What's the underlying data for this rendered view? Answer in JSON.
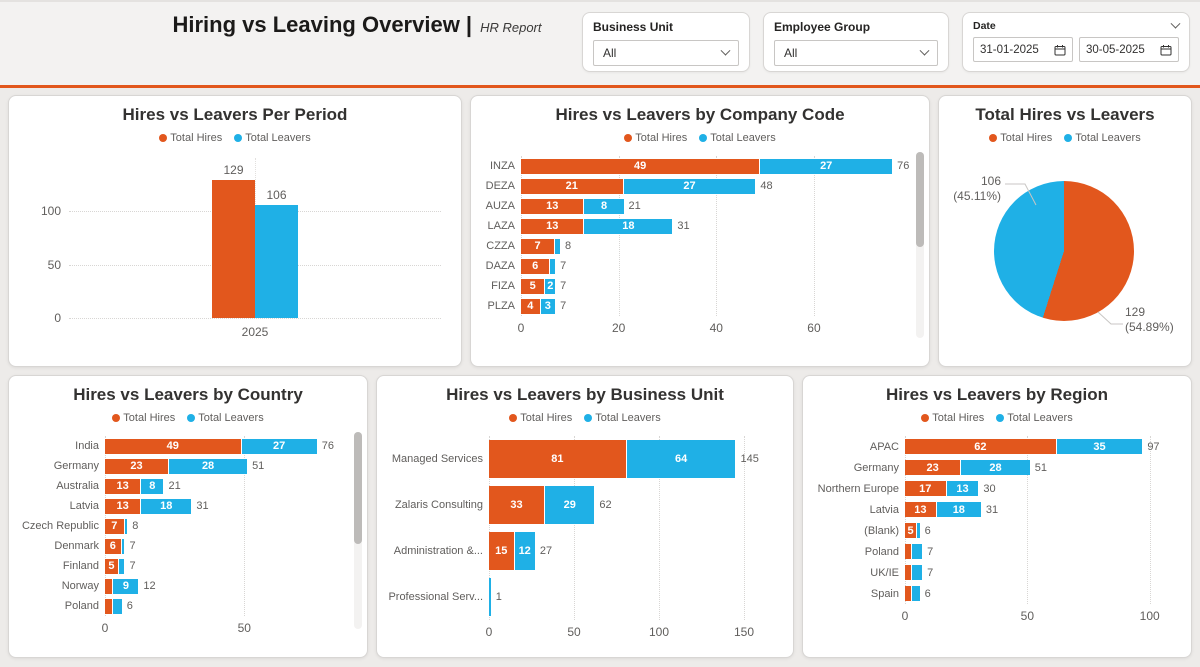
{
  "header": {
    "title": "Hiring vs Leaving Overview |",
    "subtitle": "HR Report",
    "filters": {
      "business_unit": {
        "label": "Business Unit",
        "value": "All"
      },
      "employee_group": {
        "label": "Employee Group",
        "value": "All"
      },
      "date": {
        "label": "Date",
        "start": "31-01-2025",
        "end": "30-05-2025"
      }
    }
  },
  "colors": {
    "total_hires": "#E2571D",
    "total_leavers": "#1FB0E6",
    "accent": "#E2571D"
  },
  "chart_data": [
    {
      "type": "bar",
      "title": "Hires vs Leavers Per Period",
      "legend": [
        "Total Hires",
        "Total Leavers"
      ],
      "categories": [
        "2025"
      ],
      "series": [
        {
          "name": "Total Hires",
          "values": [
            129
          ],
          "labels": [
            "129"
          ]
        },
        {
          "name": "Total Leavers",
          "values": [
            106
          ],
          "labels": [
            "106"
          ]
        }
      ],
      "yticks": [
        0,
        50,
        100
      ],
      "ylim": [
        0,
        150
      ],
      "grid": "dotted"
    },
    {
      "type": "bar-h-stacked",
      "title": "Hires vs Leavers by Company Code",
      "legend": [
        "Total Hires",
        "Total Leavers"
      ],
      "xticks": [
        0,
        20,
        40,
        60
      ],
      "xlim": [
        0,
        77
      ],
      "scrollbar": true,
      "rows": [
        {
          "label": "INZA",
          "hires": 49,
          "leavers": 27,
          "total": 76,
          "hires_label": "49",
          "leavers_label": "27",
          "total_label": "76"
        },
        {
          "label": "DEZA",
          "hires": 21,
          "leavers": 27,
          "total": 48,
          "hires_label": "21",
          "leavers_label": "27",
          "total_label": "48"
        },
        {
          "label": "AUZA",
          "hires": 13,
          "leavers": 8,
          "total": 21,
          "hires_label": "13",
          "leavers_label": "8",
          "total_label": "21"
        },
        {
          "label": "LAZA",
          "hires": 13,
          "leavers": 18,
          "total": 31,
          "hires_label": "13",
          "leavers_label": "18",
          "total_label": "31"
        },
        {
          "label": "CZZA",
          "hires": 7,
          "leavers": 1,
          "total": 8,
          "hires_label": "7",
          "leavers_label": "",
          "total_label": "8"
        },
        {
          "label": "DAZA",
          "hires": 6,
          "leavers": 1,
          "total": 7,
          "hires_label": "6",
          "leavers_label": "",
          "total_label": "7"
        },
        {
          "label": "FIZA",
          "hires": 5,
          "leavers": 2,
          "total": 7,
          "hires_label": "5",
          "leavers_label": "2",
          "total_label": "7"
        },
        {
          "label": "PLZA",
          "hires": 4,
          "leavers": 3,
          "total": 7,
          "hires_label": "4",
          "leavers_label": "3",
          "total_label": "7"
        }
      ]
    },
    {
      "type": "pie",
      "title": "Total Hires vs Leavers",
      "legend": [
        "Total Hires",
        "Total Leavers"
      ],
      "slices": [
        {
          "name": "Total Hires",
          "value": 129,
          "pct": "54.89%",
          "label_line1": "129",
          "label_line2": "(54.89%)"
        },
        {
          "name": "Total Leavers",
          "value": 106,
          "pct": "45.11%",
          "label_line1": "106",
          "label_line2": "(45.11%)"
        }
      ]
    },
    {
      "type": "bar-h-stacked",
      "title": "Hires vs Leavers by Country",
      "legend": [
        "Total Hires",
        "Total Leavers"
      ],
      "xticks": [
        0,
        50
      ],
      "xlim": [
        0,
        84
      ],
      "scrollbar": true,
      "rows": [
        {
          "label": "India",
          "hires": 49,
          "leavers": 27,
          "total": 76,
          "hires_label": "49",
          "leavers_label": "27",
          "total_label": "76"
        },
        {
          "label": "Germany",
          "hires": 23,
          "leavers": 28,
          "total": 51,
          "hires_label": "23",
          "leavers_label": "28",
          "total_label": "51"
        },
        {
          "label": "Australia",
          "hires": 13,
          "leavers": 8,
          "total": 21,
          "hires_label": "13",
          "leavers_label": "8",
          "total_label": "21"
        },
        {
          "label": "Latvia",
          "hires": 13,
          "leavers": 18,
          "total": 31,
          "hires_label": "13",
          "leavers_label": "18",
          "total_label": "31"
        },
        {
          "label": "Czech Republic",
          "hires": 7,
          "leavers": 1,
          "total": 8,
          "hires_label": "7",
          "leavers_label": "",
          "total_label": "8"
        },
        {
          "label": "Denmark",
          "hires": 6,
          "leavers": 1,
          "total": 7,
          "hires_label": "6",
          "leavers_label": "",
          "total_label": "7"
        },
        {
          "label": "Finland",
          "hires": 5,
          "leavers": 2,
          "total": 7,
          "hires_label": "5",
          "leavers_label": "",
          "total_label": "7"
        },
        {
          "label": "Norway",
          "hires": 3,
          "leavers": 9,
          "total": 12,
          "hires_label": "",
          "leavers_label": "9",
          "total_label": "12"
        },
        {
          "label": "Poland",
          "hires": 3,
          "leavers": 3,
          "total": 6,
          "hires_label": "",
          "leavers_label": "",
          "total_label": "6"
        }
      ]
    },
    {
      "type": "bar-h-stacked",
      "title": "Hires vs Leavers by Business Unit",
      "legend": [
        "Total Hires",
        "Total Leavers"
      ],
      "xticks": [
        0,
        50,
        100,
        150
      ],
      "xlim": [
        0,
        160
      ],
      "scrollbar": false,
      "rows": [
        {
          "label": "Managed Services",
          "hires": 81,
          "leavers": 64,
          "total": 145,
          "hires_label": "81",
          "leavers_label": "64",
          "total_label": "145"
        },
        {
          "label": "Zalaris Consulting",
          "hires": 33,
          "leavers": 29,
          "total": 62,
          "hires_label": "33",
          "leavers_label": "29",
          "total_label": "62"
        },
        {
          "label": "Administration &...",
          "hires": 15,
          "leavers": 12,
          "total": 27,
          "hires_label": "15",
          "leavers_label": "12",
          "total_label": "27"
        },
        {
          "label": "Professional Serv...",
          "hires": 0,
          "leavers": 1,
          "total": 1,
          "hires_label": "",
          "leavers_label": "",
          "total_label": "1"
        }
      ]
    },
    {
      "type": "bar-h-stacked",
      "title": "Hires vs Leavers by Region",
      "legend": [
        "Total Hires",
        "Total Leavers"
      ],
      "xticks": [
        0,
        50,
        100
      ],
      "xlim": [
        0,
        103
      ],
      "scrollbar": false,
      "rows": [
        {
          "label": "APAC",
          "hires": 62,
          "leavers": 35,
          "total": 97,
          "hires_label": "62",
          "leavers_label": "35",
          "total_label": "97"
        },
        {
          "label": "Germany",
          "hires": 23,
          "leavers": 28,
          "total": 51,
          "hires_label": "23",
          "leavers_label": "28",
          "total_label": "51"
        },
        {
          "label": "Northern Europe",
          "hires": 17,
          "leavers": 13,
          "total": 30,
          "hires_label": "17",
          "leavers_label": "13",
          "total_label": "30"
        },
        {
          "label": "Latvia",
          "hires": 13,
          "leavers": 18,
          "total": 31,
          "hires_label": "13",
          "leavers_label": "18",
          "total_label": "31"
        },
        {
          "label": "(Blank)",
          "hires": 5,
          "leavers": 1,
          "total": 6,
          "hires_label": "5",
          "leavers_label": "",
          "total_label": "6"
        },
        {
          "label": "Poland",
          "hires": 3,
          "leavers": 4,
          "total": 7,
          "hires_label": "",
          "leavers_label": "",
          "total_label": "7"
        },
        {
          "label": "UK/IE",
          "hires": 3,
          "leavers": 4,
          "total": 7,
          "hires_label": "",
          "leavers_label": "",
          "total_label": "7"
        },
        {
          "label": "Spain",
          "hires": 3,
          "leavers": 3,
          "total": 6,
          "hires_label": "",
          "leavers_label": "",
          "total_label": "6"
        }
      ]
    }
  ]
}
